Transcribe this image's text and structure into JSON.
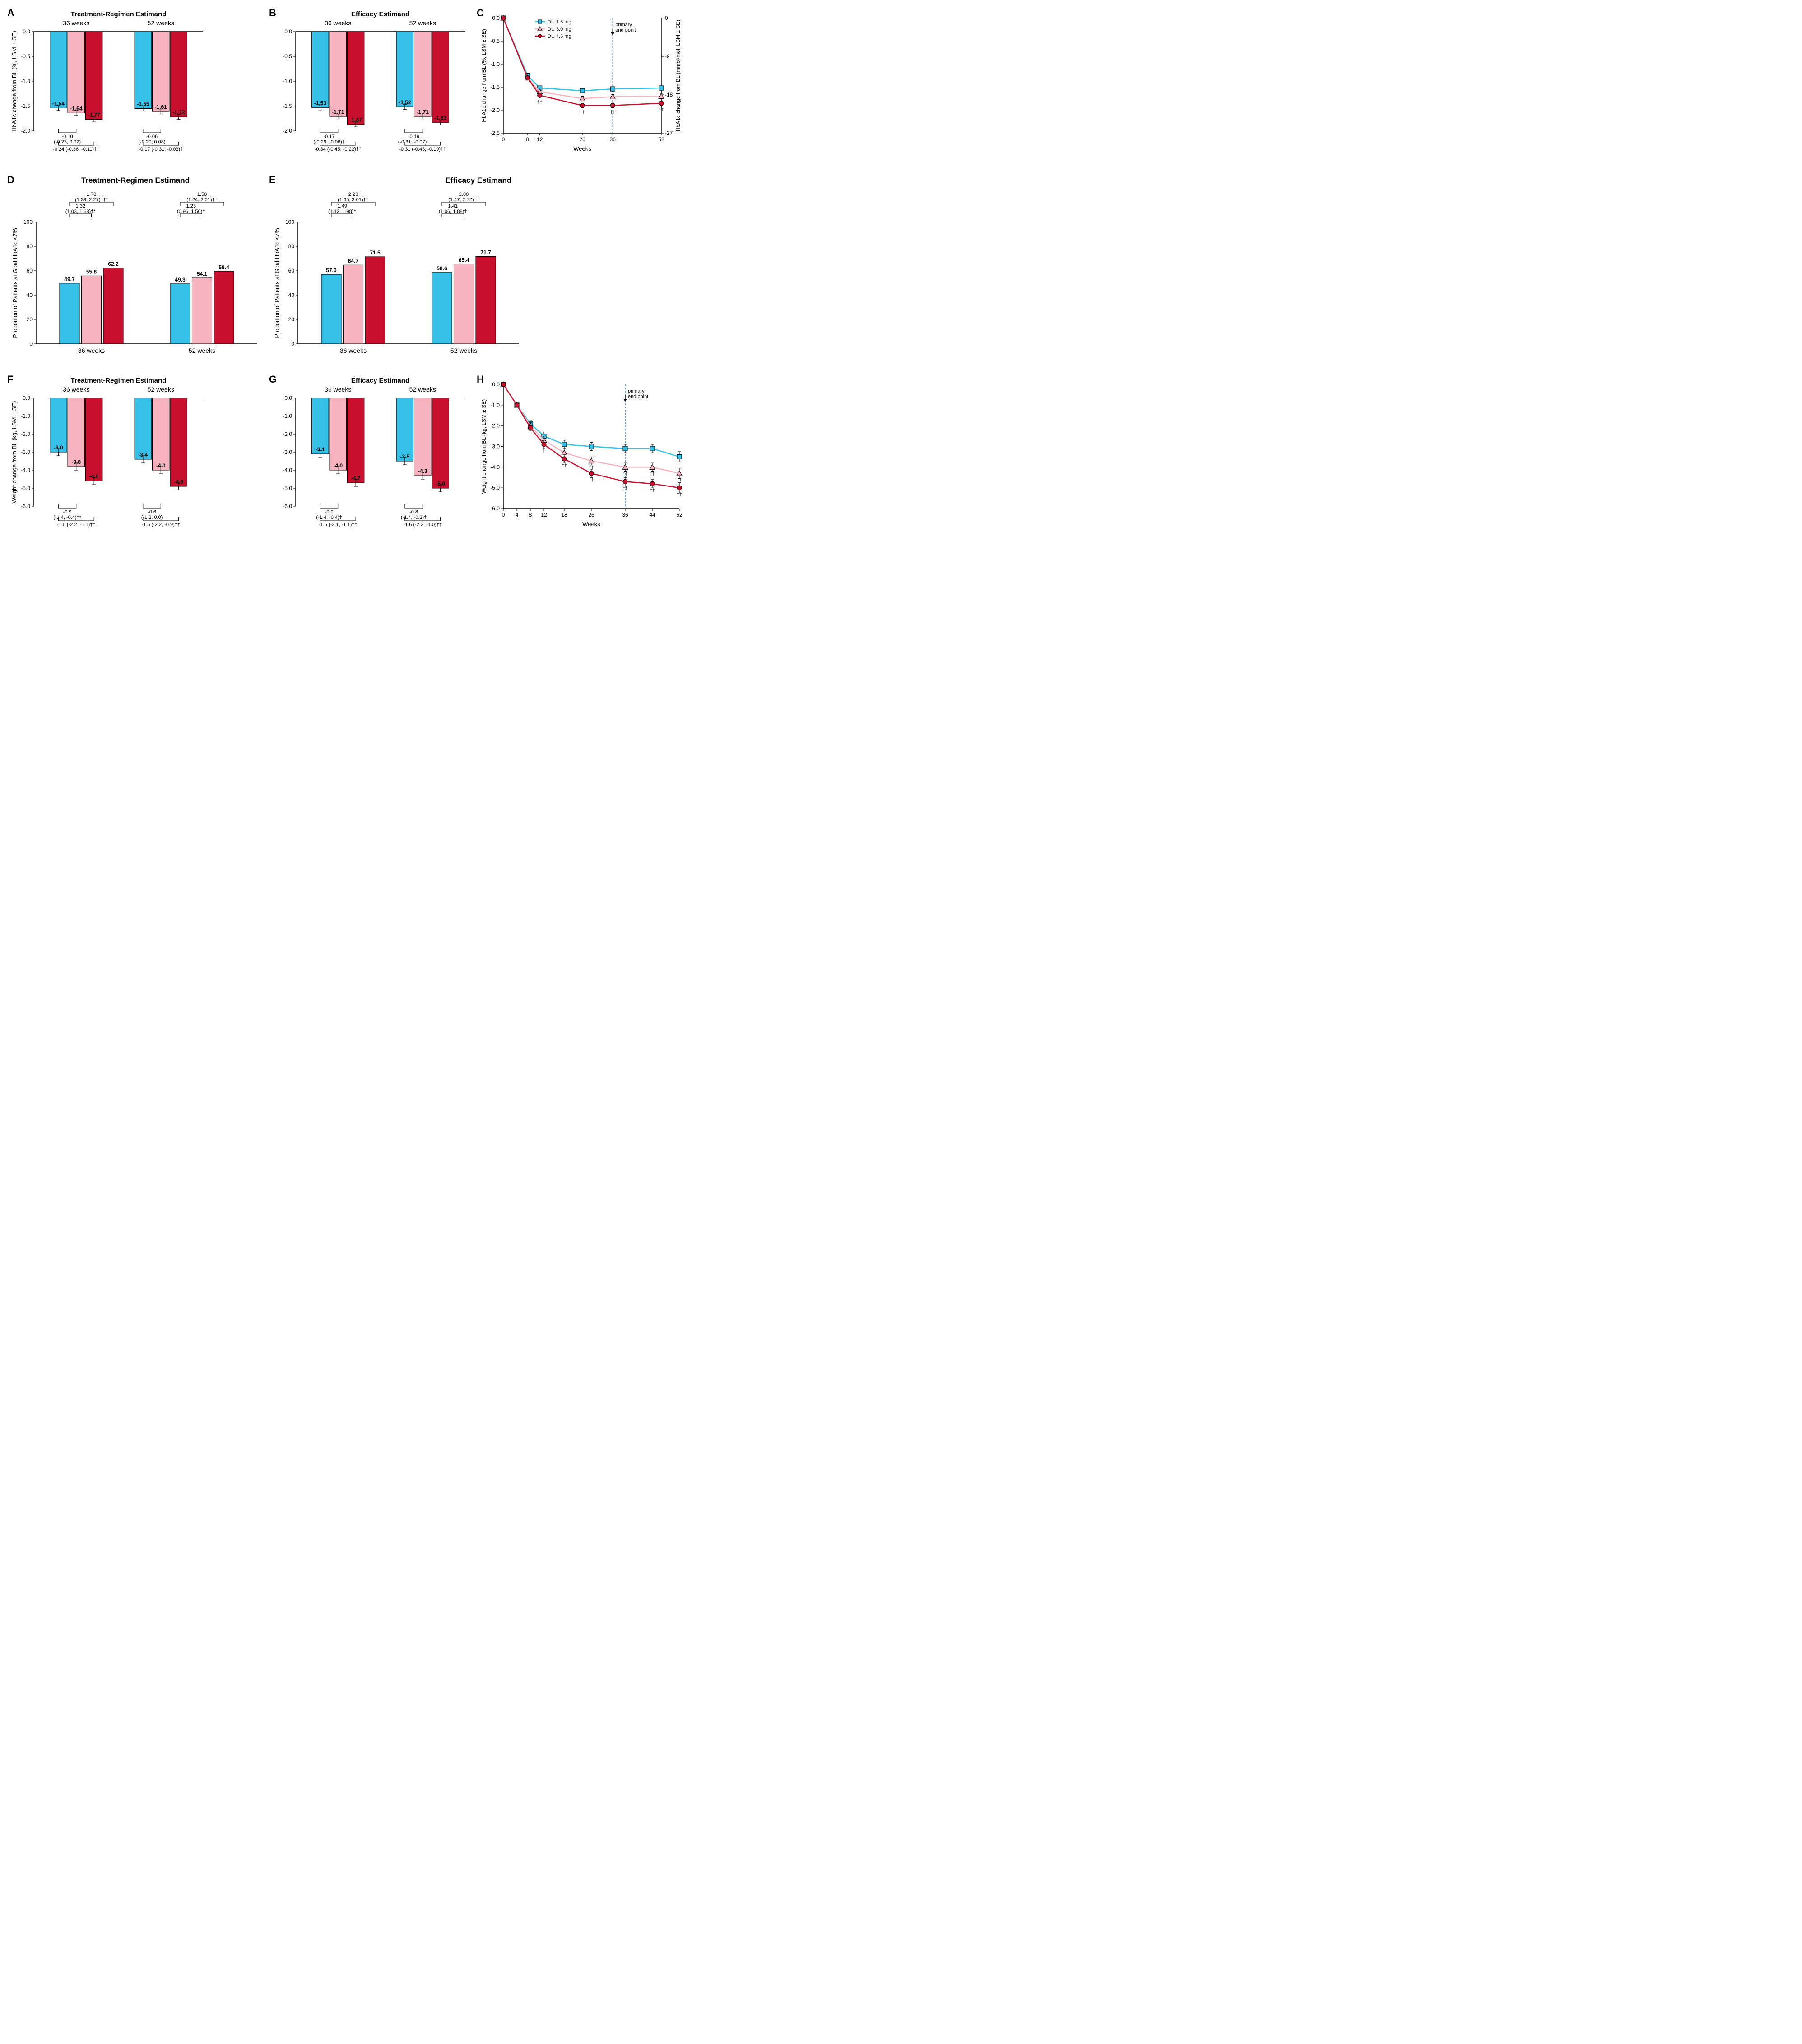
{
  "global": {
    "colors": {
      "du15": "#35c1e8",
      "du30": "#f7b4c0",
      "du45": "#c8102e",
      "black": "#000000",
      "axis": "#000000",
      "endpoint_line": "#3b7ecb"
    },
    "legend_c": [
      "DU 1.5 mg",
      "DU 3.0 mg",
      "DU 4.5 mg"
    ],
    "endpoint_label": "primary\nend point",
    "bar_border": "#000000",
    "tick_fontsize": 13,
    "label_fontsize": 14,
    "title_fontsize": 16,
    "value_fontsize": 13
  },
  "A": {
    "label": "A",
    "title": "Treatment-Regimen Estimand",
    "sub_labels": [
      "36 weeks",
      "52 weeks"
    ],
    "ylabel": "HbA1c change from BL (%, LSM ± SE)",
    "ylim": [
      -2.0,
      0.0
    ],
    "yticks": [
      0.0,
      -0.5,
      -1.0,
      -1.5,
      -2.0
    ],
    "bar_width": 0.7,
    "groups": [
      {
        "vals": [
          -1.54,
          -1.64,
          -1.77
        ],
        "se": [
          0.05,
          0.05,
          0.05
        ],
        "labels": [
          "-1.54",
          "-1.64",
          "-1.77"
        ]
      },
      {
        "vals": [
          -1.55,
          -1.61,
          -1.72
        ],
        "se": [
          0.05,
          0.05,
          0.05
        ],
        "labels": [
          "-1.55",
          "-1.61",
          "-1.72"
        ]
      }
    ],
    "annot": [
      {
        "text": "-0.10\n(-0.23, 0.02)",
        "group": 0,
        "span": [
          0,
          1
        ]
      },
      {
        "text": "-0.24 (-0.36, -0.11)††",
        "group": 0,
        "span": [
          0,
          2
        ],
        "below": true
      },
      {
        "text": "-0.06\n(-0.20, 0.08)",
        "group": 1,
        "span": [
          0,
          1
        ]
      },
      {
        "text": "-0.17 (-0.31, -0.03)†",
        "group": 1,
        "span": [
          0,
          2
        ],
        "below": true
      }
    ]
  },
  "B": {
    "label": "B",
    "title": "Efficacy Estimand",
    "sub_labels": [
      "36 weeks",
      "52 weeks"
    ],
    "ylabel": "",
    "ylim": [
      -2.0,
      0.0
    ],
    "yticks": [
      0.0,
      -0.5,
      -1.0,
      -1.5,
      -2.0
    ],
    "groups": [
      {
        "vals": [
          -1.53,
          -1.71,
          -1.87
        ],
        "se": [
          0.05,
          0.05,
          0.05
        ],
        "labels": [
          "-1.53",
          "-1.71",
          "-1.87"
        ]
      },
      {
        "vals": [
          -1.52,
          -1.71,
          -1.83
        ],
        "se": [
          0.05,
          0.05,
          0.05
        ],
        "labels": [
          "-1.52",
          "-1.71",
          "-1.83"
        ]
      }
    ],
    "annot": [
      {
        "text": "-0.17\n(-0.29, -0.06)†",
        "group": 0,
        "span": [
          0,
          1
        ]
      },
      {
        "text": "-0.34 (-0.45, -0.22)††",
        "group": 0,
        "span": [
          0,
          2
        ],
        "below": true
      },
      {
        "text": "-0.19\n(-0.31, -0.07)†",
        "group": 1,
        "span": [
          0,
          1
        ]
      },
      {
        "text": "-0.31 (-0.43, -0.19)††",
        "group": 1,
        "span": [
          0,
          2
        ],
        "below": true
      }
    ]
  },
  "C": {
    "label": "C",
    "xlabel": "Weeks",
    "ylabel_left": "HbA1c change from BL (%, LSM ± SE)",
    "ylabel_right": "HbA1c change from BL (mmol/mol, LSM ± SE)",
    "xlim": [
      0,
      52
    ],
    "xticks": [
      0,
      8,
      12,
      26,
      36,
      52
    ],
    "ylim_left": [
      -2.5,
      0.0
    ],
    "yticks_left": [
      0.0,
      -0.5,
      -1.0,
      -1.5,
      -2.0,
      -2.5
    ],
    "ylim_right": [
      -27,
      0
    ],
    "yticks_right": [
      0,
      -9,
      -18,
      -27
    ],
    "endpoint_x": 36,
    "series": [
      {
        "name": "DU 1.5 mg",
        "color": "#35c1e8",
        "marker": "square",
        "x": [
          0,
          8,
          12,
          26,
          36,
          52
        ],
        "y": [
          0,
          -1.25,
          -1.52,
          -1.58,
          -1.54,
          -1.52
        ],
        "se": [
          0,
          0.04,
          0.04,
          0.05,
          0.05,
          0.05
        ],
        "sig": [
          "",
          "",
          "",
          "",
          "†",
          "†"
        ]
      },
      {
        "name": "DU 3.0 mg",
        "color": "#f7b4c0",
        "marker": "triangle",
        "x": [
          0,
          8,
          12,
          26,
          36,
          52
        ],
        "y": [
          0,
          -1.3,
          -1.6,
          -1.75,
          -1.71,
          -1.7
        ],
        "se": [
          0,
          0.04,
          0.04,
          0.05,
          0.05,
          0.05
        ],
        "sig": [
          "",
          "",
          "",
          "",
          "†",
          "†"
        ]
      },
      {
        "name": "DU 4.5 mg",
        "color": "#c8102e",
        "marker": "circle",
        "x": [
          0,
          8,
          12,
          26,
          36,
          52
        ],
        "y": [
          0,
          -1.3,
          -1.68,
          -1.9,
          -1.9,
          -1.85
        ],
        "se": [
          0,
          0.04,
          0.04,
          0.05,
          0.05,
          0.05
        ],
        "sig": [
          "",
          "",
          "††",
          "††",
          "††",
          "††"
        ]
      }
    ]
  },
  "D": {
    "label": "D",
    "title": "Treatment-Regimen Estimand",
    "x_labels": [
      "36 weeks",
      "52 weeks"
    ],
    "ylabel": "Proportion of Patients at Goal HbA1c <7% ",
    "ylim": [
      0,
      100
    ],
    "yticks": [
      0,
      20,
      40,
      60,
      80,
      100
    ],
    "groups": [
      {
        "vals": [
          49.7,
          55.8,
          62.2
        ],
        "labels": [
          "49.7",
          "55.8",
          "62.2"
        ]
      },
      {
        "vals": [
          49.3,
          54.1,
          59.4
        ],
        "labels": [
          "49.3",
          "54.1",
          "59.4"
        ]
      }
    ],
    "annot": [
      {
        "text": "1.32\n(1.03, 1.68)†*",
        "group": 0,
        "span": [
          0,
          1
        ]
      },
      {
        "text": "1.78\n(1.39, 2.27)††*",
        "group": 0,
        "span": [
          0,
          2
        ],
        "outer": true
      },
      {
        "text": "1.23\n(0.96, 1.56)†",
        "group": 1,
        "span": [
          0,
          1
        ]
      },
      {
        "text": "1.58\n(1.24, 2.01)††",
        "group": 1,
        "span": [
          0,
          2
        ],
        "outer": true
      }
    ]
  },
  "E": {
    "label": "E",
    "title": "Efficacy Estimand",
    "x_labels": [
      "36 weeks",
      "52 weeks"
    ],
    "ylabel": "Proportion of Patients at Goal HbA1c <7% ",
    "ylim": [
      0,
      100
    ],
    "yticks": [
      0,
      20,
      40,
      60,
      80,
      100
    ],
    "groups": [
      {
        "vals": [
          57.0,
          64.7,
          71.5
        ],
        "labels": [
          "57.0",
          "64.7",
          "71.5"
        ]
      },
      {
        "vals": [
          58.6,
          65.4,
          71.7
        ],
        "labels": [
          "58.6",
          "65.4",
          "71.7"
        ]
      }
    ],
    "annot": [
      {
        "text": "1.49\n(1.12, 1.98)†",
        "group": 0,
        "span": [
          0,
          1
        ]
      },
      {
        "text": "2.23\n(1.65, 3.01)††",
        "group": 0,
        "span": [
          0,
          2
        ],
        "outer": true
      },
      {
        "text": "1.41\n(1.06, 1.88)†",
        "group": 1,
        "span": [
          0,
          1
        ]
      },
      {
        "text": "2.00\n(1.47, 2.72)††",
        "group": 1,
        "span": [
          0,
          2
        ],
        "outer": true
      }
    ]
  },
  "F": {
    "label": "F",
    "title": "Treatment-Regimen Estimand",
    "sub_labels": [
      "36 weeks",
      "52 weeks"
    ],
    "ylabel": "Weight change from BL (kg, LSM ± SE)",
    "ylim": [
      -6.0,
      0.0
    ],
    "yticks": [
      0.0,
      -1.0,
      -2.0,
      -3.0,
      -4.0,
      -5.0,
      -6.0
    ],
    "yticklabels": [
      "0.0",
      "-1.0",
      "-2.0",
      "-3.0",
      "-4.0",
      "-5.0",
      "-6.0"
    ],
    "groups": [
      {
        "vals": [
          -3.0,
          -3.8,
          -4.6
        ],
        "se": [
          0.2,
          0.2,
          0.2
        ],
        "labels": [
          "-3.0",
          "-3.8",
          "-4.6"
        ]
      },
      {
        "vals": [
          -3.4,
          -4.0,
          -4.9
        ],
        "se": [
          0.2,
          0.2,
          0.2
        ],
        "labels": [
          "-3.4",
          "-4.0",
          "-4.9"
        ]
      }
    ],
    "annot": [
      {
        "text": "-0.9\n(-1.4, -0.4)†*",
        "group": 0,
        "span": [
          0,
          1
        ]
      },
      {
        "text": "-1.6 (-2.2, -1.1)††",
        "group": 0,
        "span": [
          0,
          2
        ],
        "below": true
      },
      {
        "text": "-0.6\n(-1.2, 0.0)",
        "group": 1,
        "span": [
          0,
          1
        ]
      },
      {
        "text": "-1.5 (-2.2, -0.9)††",
        "group": 1,
        "span": [
          0,
          2
        ],
        "below": true
      }
    ]
  },
  "G": {
    "label": "G",
    "title": "Efficacy Estimand",
    "sub_labels": [
      "36 weeks",
      "52 weeks"
    ],
    "ylabel": "",
    "ylim": [
      -6.0,
      0.0
    ],
    "yticks": [
      0.0,
      -1.0,
      -2.0,
      -3.0,
      -4.0,
      -5.0,
      -6.0
    ],
    "yticklabels": [
      "0.0",
      "-1.0",
      "-2.0",
      "-3.0",
      "-4.0",
      "-5.0",
      "-6.0"
    ],
    "groups": [
      {
        "vals": [
          -3.1,
          -4.0,
          -4.7
        ],
        "se": [
          0.2,
          0.2,
          0.2
        ],
        "labels": [
          "-3.1",
          "-4.0",
          "-4.7"
        ]
      },
      {
        "vals": [
          -3.5,
          -4.3,
          -5.0
        ],
        "se": [
          0.2,
          0.2,
          0.2
        ],
        "labels": [
          "-3.5",
          "-4.3",
          "-5.0"
        ]
      }
    ],
    "annot": [
      {
        "text": "-0.9\n(-1.4, -0.4)†",
        "group": 0,
        "span": [
          0,
          1
        ]
      },
      {
        "text": "-1.6 (-2.1, -1.1)††",
        "group": 0,
        "span": [
          0,
          2
        ],
        "below": true
      },
      {
        "text": "-0.8\n(-1.4, -0.2)†",
        "group": 1,
        "span": [
          0,
          1
        ]
      },
      {
        "text": "-1.6 (-2.2, -1.0)††",
        "group": 1,
        "span": [
          0,
          2
        ],
        "below": true
      }
    ]
  },
  "H": {
    "label": "H",
    "xlabel": "Weeks",
    "ylabel": "Weight change from BL (kg, LSM ± SE)",
    "xlim": [
      0,
      52
    ],
    "xticks": [
      0,
      4,
      8,
      12,
      18,
      26,
      36,
      44,
      52
    ],
    "ylim": [
      -6.0,
      0.0
    ],
    "yticks": [
      0.0,
      -1.0,
      -2.0,
      -3.0,
      -4.0,
      -5.0,
      -6.0
    ],
    "yticklabels": [
      "0.0",
      "-1.0",
      "-2.0",
      "-3.0",
      "-4.0",
      "-5.0",
      "-6.0"
    ],
    "endpoint_x": 36,
    "series": [
      {
        "name": "DU 1.5 mg",
        "color": "#35c1e8",
        "marker": "square",
        "x": [
          0,
          4,
          8,
          12,
          18,
          26,
          36,
          44,
          52
        ],
        "y": [
          0,
          -1.0,
          -1.9,
          -2.5,
          -2.9,
          -3.0,
          -3.1,
          -3.1,
          -3.5
        ],
        "se": [
          0,
          0.1,
          0.15,
          0.2,
          0.2,
          0.2,
          0.2,
          0.2,
          0.25
        ],
        "sig": [
          "",
          "",
          "",
          "",
          "",
          "",
          "",
          "",
          ""
        ]
      },
      {
        "name": "DU 3.0 mg",
        "color": "#f7b4c0",
        "marker": "triangle",
        "x": [
          0,
          4,
          8,
          12,
          18,
          26,
          36,
          44,
          52
        ],
        "y": [
          0,
          -1.0,
          -2.0,
          -2.7,
          -3.3,
          -3.7,
          -4.0,
          -4.0,
          -4.3
        ],
        "se": [
          0,
          0.1,
          0.15,
          0.2,
          0.2,
          0.2,
          0.2,
          0.2,
          0.25
        ],
        "sig": [
          "",
          "",
          "",
          "†",
          "††",
          "††",
          "††",
          "††",
          "††"
        ]
      },
      {
        "name": "DU 4.5 mg",
        "color": "#c8102e",
        "marker": "circle",
        "x": [
          0,
          4,
          8,
          12,
          18,
          26,
          36,
          44,
          52
        ],
        "y": [
          0,
          -1.0,
          -2.1,
          -2.9,
          -3.6,
          -4.3,
          -4.7,
          -4.8,
          -5.0
        ],
        "se": [
          0,
          0.1,
          0.15,
          0.2,
          0.2,
          0.2,
          0.2,
          0.2,
          0.25
        ],
        "sig": [
          "",
          "",
          "",
          "†",
          "††",
          "††",
          "††",
          "††",
          "††"
        ]
      }
    ]
  }
}
